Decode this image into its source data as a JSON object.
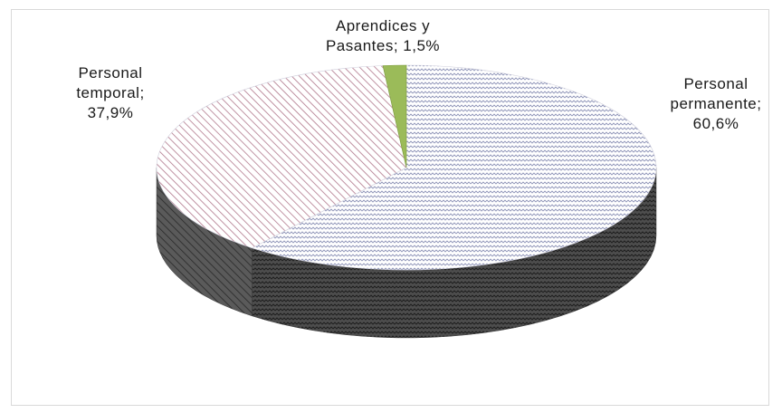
{
  "chart_data": {
    "type": "pie",
    "style": "3d",
    "title": "",
    "slices": [
      {
        "label": "Personal permanente",
        "value": 60.6,
        "display": [
          "Personal",
          "permanente;",
          "60,6%"
        ],
        "pattern_color": "#8f95b8",
        "side_color": "#555555"
      },
      {
        "label": "Personal temporal",
        "value": 37.9,
        "display": [
          "Personal",
          "temporal;",
          "37,9%"
        ],
        "pattern_color": "#a15f75",
        "side_color": "#5a5a5a"
      },
      {
        "label": "Aprendices y Pasantes",
        "value": 1.5,
        "display": [
          "Aprendices y",
          "Pasantes; 1,5%"
        ],
        "fill_color": "#9bbb59",
        "side_color": "#71893f"
      }
    ],
    "legend": "none",
    "data_labels": "category; percentage"
  }
}
